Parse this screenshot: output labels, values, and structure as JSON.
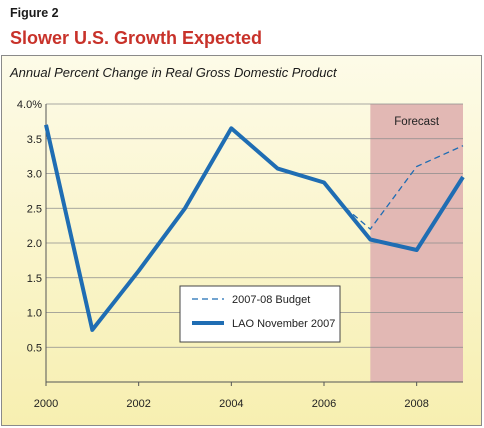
{
  "figure_label": "Figure 2",
  "title": "Slower U.S. Growth Expected",
  "chart_data": {
    "type": "line",
    "title": "Slower U.S. Growth Expected",
    "subtitle": "Annual Percent Change in Real Gross Domestic Product",
    "xlim": [
      2000,
      2009
    ],
    "ylim": [
      0,
      4.0
    ],
    "x_ticks": [
      {
        "value": 2000,
        "label": "2000"
      },
      {
        "value": 2002,
        "label": "2002"
      },
      {
        "value": 2004,
        "label": "2004"
      },
      {
        "value": 2006,
        "label": "2006"
      },
      {
        "value": 2008,
        "label": "2008"
      }
    ],
    "y_ticks": [
      {
        "value": 0.5,
        "label": "0.5"
      },
      {
        "value": 1.0,
        "label": "1.0"
      },
      {
        "value": 1.5,
        "label": "1.5"
      },
      {
        "value": 2.0,
        "label": "2.0"
      },
      {
        "value": 2.5,
        "label": "2.5"
      },
      {
        "value": 3.0,
        "label": "3.0"
      },
      {
        "value": 3.5,
        "label": "3.5"
      },
      {
        "value": 4.0,
        "label": "4.0%"
      }
    ],
    "grid": true,
    "forecast_region": {
      "start": 2007,
      "end": 2009,
      "label": "Forecast",
      "color": "#e2b8b4"
    },
    "series": [
      {
        "name": "2007-08 Budget",
        "style": "dashed",
        "color": "#1f6db3",
        "x": [
          2006.3,
          2007,
          2008,
          2009
        ],
        "y": [
          2.6,
          2.2,
          3.1,
          3.4
        ]
      },
      {
        "name": "LAO November 2007",
        "style": "solid",
        "color": "#1f6db3",
        "x": [
          2000,
          2001,
          2002,
          2003,
          2004,
          2005,
          2006,
          2007,
          2008,
          2009
        ],
        "y": [
          3.7,
          0.75,
          1.6,
          2.5,
          3.65,
          3.07,
          2.87,
          2.05,
          1.9,
          2.95
        ]
      }
    ],
    "legend_position": "bottom-center",
    "colors": {
      "title": "#c8322a",
      "line": "#1f6db3",
      "forecast": "#e2b8b4",
      "background_top": "#fdfbe8",
      "background_bottom": "#f7efb0"
    }
  }
}
